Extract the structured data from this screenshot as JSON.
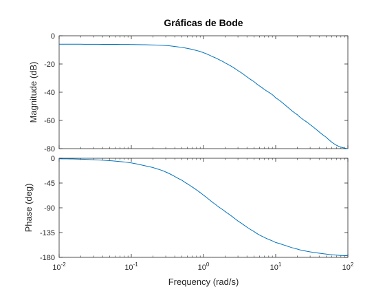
{
  "chart_data": {
    "type": "line",
    "title": "Gráficas de Bode",
    "x_scale": "log",
    "xlabel": "Frequency  (rad/s)",
    "xlim": [
      0.01,
      100
    ],
    "x_ticks": [
      {
        "value": 0.01,
        "base": "10",
        "exp": "-2"
      },
      {
        "value": 0.1,
        "base": "10",
        "exp": "-1"
      },
      {
        "value": 1,
        "base": "10",
        "exp": "0"
      },
      {
        "value": 10,
        "base": "10",
        "exp": "1"
      },
      {
        "value": 100,
        "base": "10",
        "exp": "2"
      }
    ],
    "line_color": "#0072bd",
    "grid": false,
    "subplots": [
      {
        "name": "magnitude",
        "ylabel": "Magnitude (dB)",
        "ylim": [
          -80,
          0
        ],
        "y_ticks": [
          0,
          -20,
          -40,
          -60,
          -80
        ],
        "x": [
          0.01,
          0.02,
          0.05,
          0.1,
          0.2,
          0.3,
          0.5,
          0.7,
          1,
          1.5,
          2,
          3,
          5,
          7,
          10,
          20,
          30,
          50,
          70,
          100
        ],
        "y": [
          -6.0,
          -6.0,
          -6.1,
          -6.2,
          -6.5,
          -6.9,
          -8.2,
          -9.7,
          -12.0,
          -15.9,
          -19.3,
          -24.7,
          -32.5,
          -38.1,
          -44.0,
          -56.0,
          -63.0,
          -71.9,
          -77.7,
          -80.0
        ]
      },
      {
        "name": "phase",
        "ylabel": "Phase (deg)",
        "ylim": [
          -180,
          0
        ],
        "y_ticks": [
          0,
          -45,
          -90,
          -135,
          -180
        ],
        "x": [
          0.01,
          0.02,
          0.05,
          0.1,
          0.2,
          0.3,
          0.5,
          0.7,
          1,
          1.5,
          2,
          3,
          5,
          7,
          10,
          20,
          30,
          50,
          70,
          100
        ],
        "y": [
          -1.0,
          -1.7,
          -4.3,
          -8.5,
          -16.9,
          -25.0,
          -39.8,
          -52.3,
          -67.0,
          -84.8,
          -97.0,
          -114.0,
          -133.0,
          -144.0,
          -153.0,
          -165.0,
          -170.0,
          -174.0,
          -176.0,
          -177.0
        ]
      }
    ]
  }
}
